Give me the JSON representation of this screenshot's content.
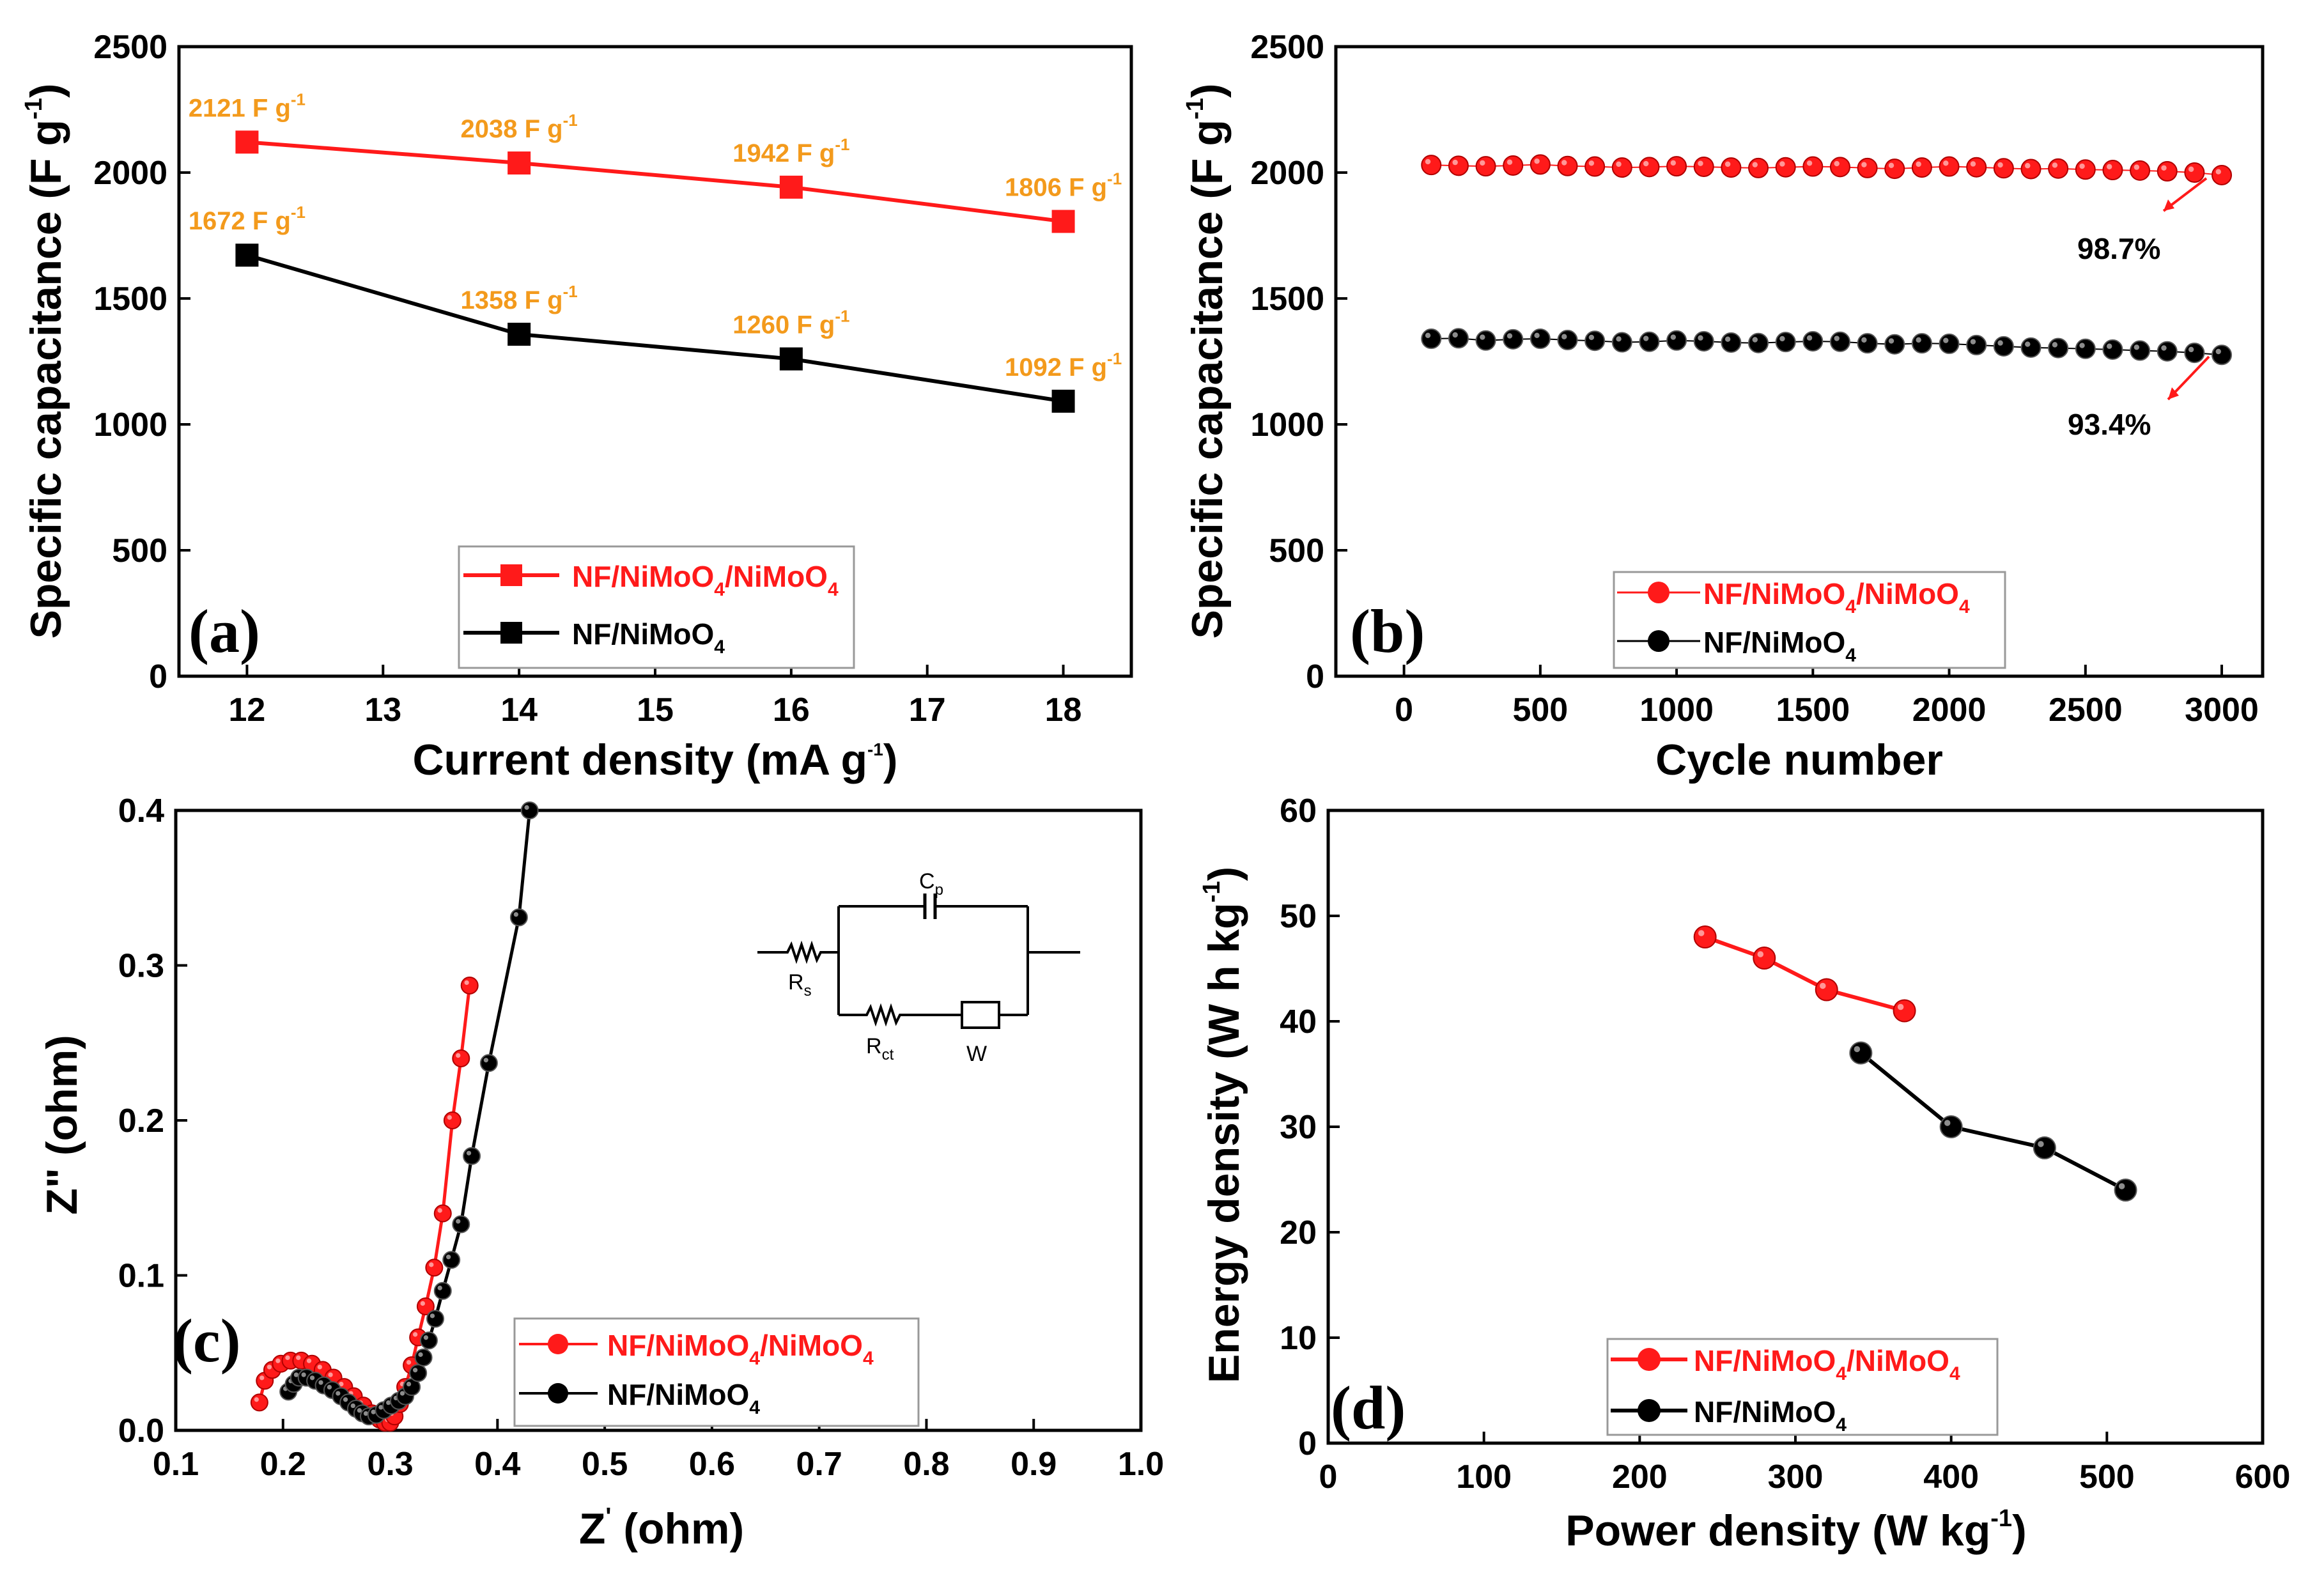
{
  "colors": {
    "red": "#ff1a1a",
    "black": "#000000",
    "label_orange": "#f39a1c"
  },
  "series_names": {
    "red": {
      "base": "NF/NiMoO",
      "sub1": "4",
      "mid": "/NiMoO",
      "sub2": "4"
    },
    "black": {
      "base": "NF/NiMoO",
      "sub1": "4"
    }
  },
  "chart_data": [
    {
      "id": "a",
      "panel_label": "(a)",
      "type": "line",
      "marker": "square",
      "xlabel": "Current density (mA g",
      "xlabel_sup": "-1",
      "xlabel_end": ")",
      "ylabel": "Specific capacitance (F g",
      "ylabel_sup": "-1",
      "ylabel_end": ")",
      "xlim": [
        11.5,
        18.5
      ],
      "ylim": [
        0,
        2500
      ],
      "xticks": [
        "12",
        "13",
        "14",
        "15",
        "16",
        "17",
        "18"
      ],
      "yticks": [
        "0",
        "500",
        "1000",
        "1500",
        "2000",
        "2500"
      ],
      "x": [
        12,
        14,
        16,
        18
      ],
      "series": [
        {
          "name": "NF/NiMoO4/NiMoO4",
          "color": "#ff1a1a",
          "values": [
            2121,
            2038,
            1942,
            1806
          ],
          "labels": [
            "2121 F g",
            "2038 F g",
            "1942 F g",
            "1806 F g"
          ]
        },
        {
          "name": "NF/NiMoO4",
          "color": "#000000",
          "values": [
            1672,
            1358,
            1260,
            1092
          ],
          "labels": [
            "1672 F g",
            "1358 F g",
            "1260 F g",
            "1092 F g"
          ]
        }
      ],
      "label_sup": "-1",
      "legend": "bottom-right"
    },
    {
      "id": "b",
      "panel_label": "(b)",
      "type": "scatter",
      "marker": "circle",
      "xlabel": "Cycle number",
      "ylabel": "Specific capacitance (F g",
      "ylabel_sup": "-1",
      "ylabel_end": ")",
      "xlim": [
        -250,
        3150
      ],
      "ylim": [
        0,
        2500
      ],
      "xticks": [
        "0",
        "500",
        "1000",
        "1500",
        "2000",
        "2500",
        "3000"
      ],
      "yticks": [
        "0",
        "500",
        "1000",
        "1500",
        "2000",
        "2500"
      ],
      "x": [
        100,
        200,
        300,
        400,
        500,
        600,
        700,
        800,
        900,
        1000,
        1100,
        1200,
        1300,
        1400,
        1500,
        1600,
        1700,
        1800,
        1900,
        2000,
        2100,
        2200,
        2300,
        2400,
        2500,
        2600,
        2700,
        2800,
        2900,
        3000
      ],
      "series": [
        {
          "name": "NF/NiMoO4/NiMoO4",
          "color": "#ff1a1a",
          "values": [
            2030,
            2027,
            2025,
            2028,
            2032,
            2026,
            2024,
            2020,
            2022,
            2025,
            2023,
            2020,
            2018,
            2021,
            2024,
            2022,
            2018,
            2015,
            2020,
            2024,
            2021,
            2017,
            2014,
            2016,
            2012,
            2010,
            2008,
            2005,
            2000,
            1990
          ]
        },
        {
          "name": "NF/NiMoO4",
          "color": "#000000",
          "values": [
            1340,
            1342,
            1333,
            1338,
            1340,
            1335,
            1332,
            1326,
            1328,
            1333,
            1330,
            1325,
            1323,
            1327,
            1330,
            1328,
            1322,
            1318,
            1322,
            1320,
            1315,
            1310,
            1305,
            1303,
            1300,
            1297,
            1293,
            1290,
            1284,
            1276
          ]
        }
      ],
      "annotations": [
        "98.7%",
        "93.4%"
      ],
      "legend": "bottom-right"
    },
    {
      "id": "c",
      "panel_label": "(c)",
      "type": "line",
      "marker": "circle",
      "xlabel": "Z",
      "xlabel_sup": "'",
      "xlabel_end": " (ohm)",
      "ylabel": "Z\" (ohm)",
      "xlim": [
        0.1,
        1.0
      ],
      "ylim": [
        0,
        0.4
      ],
      "xticks": [
        "0.1",
        "0.2",
        "0.3",
        "0.4",
        "0.5",
        "0.6",
        "0.7",
        "0.8",
        "0.9",
        "1.0"
      ],
      "yticks": [
        "0.0",
        "0.1",
        "0.2",
        "0.3",
        "0.4"
      ],
      "series": [
        {
          "name": "NF/NiMoO4/NiMoO4",
          "color": "#ff1a1a",
          "x": [
            0.178,
            0.183,
            0.19,
            0.198,
            0.207,
            0.217,
            0.227,
            0.237,
            0.247,
            0.257,
            0.266,
            0.275,
            0.283,
            0.29,
            0.295,
            0.3,
            0.304,
            0.309,
            0.314,
            0.32,
            0.326,
            0.333,
            0.341,
            0.349,
            0.358,
            0.366,
            0.374
          ],
          "y": [
            0.018,
            0.032,
            0.039,
            0.043,
            0.045,
            0.045,
            0.043,
            0.039,
            0.034,
            0.028,
            0.022,
            0.016,
            0.011,
            0.007,
            0.005,
            0.005,
            0.009,
            0.017,
            0.028,
            0.042,
            0.06,
            0.08,
            0.105,
            0.14,
            0.2,
            0.24,
            0.287
          ]
        },
        {
          "name": "NF/NiMoO4",
          "color": "#000000",
          "x": [
            0.205,
            0.21,
            0.215,
            0.222,
            0.23,
            0.238,
            0.246,
            0.254,
            0.261,
            0.268,
            0.274,
            0.28,
            0.287,
            0.294,
            0.301,
            0.308,
            0.314,
            0.32,
            0.326,
            0.331,
            0.336,
            0.342,
            0.349,
            0.357,
            0.366,
            0.376,
            0.392,
            0.42,
            0.43
          ],
          "y": [
            0.025,
            0.03,
            0.034,
            0.034,
            0.032,
            0.029,
            0.026,
            0.022,
            0.018,
            0.014,
            0.011,
            0.009,
            0.01,
            0.013,
            0.016,
            0.019,
            0.022,
            0.028,
            0.037,
            0.047,
            0.058,
            0.072,
            0.09,
            0.11,
            0.133,
            0.177,
            0.237,
            0.331,
            0.4
          ]
        }
      ],
      "circuit_labels": {
        "cp": "C",
        "cp_sub": "p",
        "rs": "R",
        "rs_sub": "s",
        "rct": "R",
        "rct_sub": "ct",
        "w": "W"
      },
      "legend": "bottom-right"
    },
    {
      "id": "d",
      "panel_label": "(d)",
      "type": "line",
      "marker": "circle",
      "xlabel": "Power density (W kg",
      "xlabel_sup": "-1",
      "xlabel_end": ")",
      "ylabel": "Energy density (W h kg",
      "ylabel_sup": "-1",
      "ylabel_end": ")",
      "xlim": [
        0,
        600
      ],
      "ylim": [
        0,
        60
      ],
      "xticks": [
        "0",
        "100",
        "200",
        "300",
        "400",
        "500",
        "600"
      ],
      "yticks": [
        "0",
        "10",
        "20",
        "30",
        "40",
        "50",
        "60"
      ],
      "series": [
        {
          "name": "NF/NiMoO4/NiMoO4",
          "color": "#ff1a1a",
          "x": [
            242,
            280,
            320,
            370
          ],
          "y": [
            48,
            46,
            43,
            41
          ]
        },
        {
          "name": "NF/NiMoO4",
          "color": "#000000",
          "x": [
            342,
            400,
            460,
            512
          ],
          "y": [
            37,
            30,
            28,
            24
          ]
        }
      ],
      "legend": "bottom-left"
    }
  ]
}
